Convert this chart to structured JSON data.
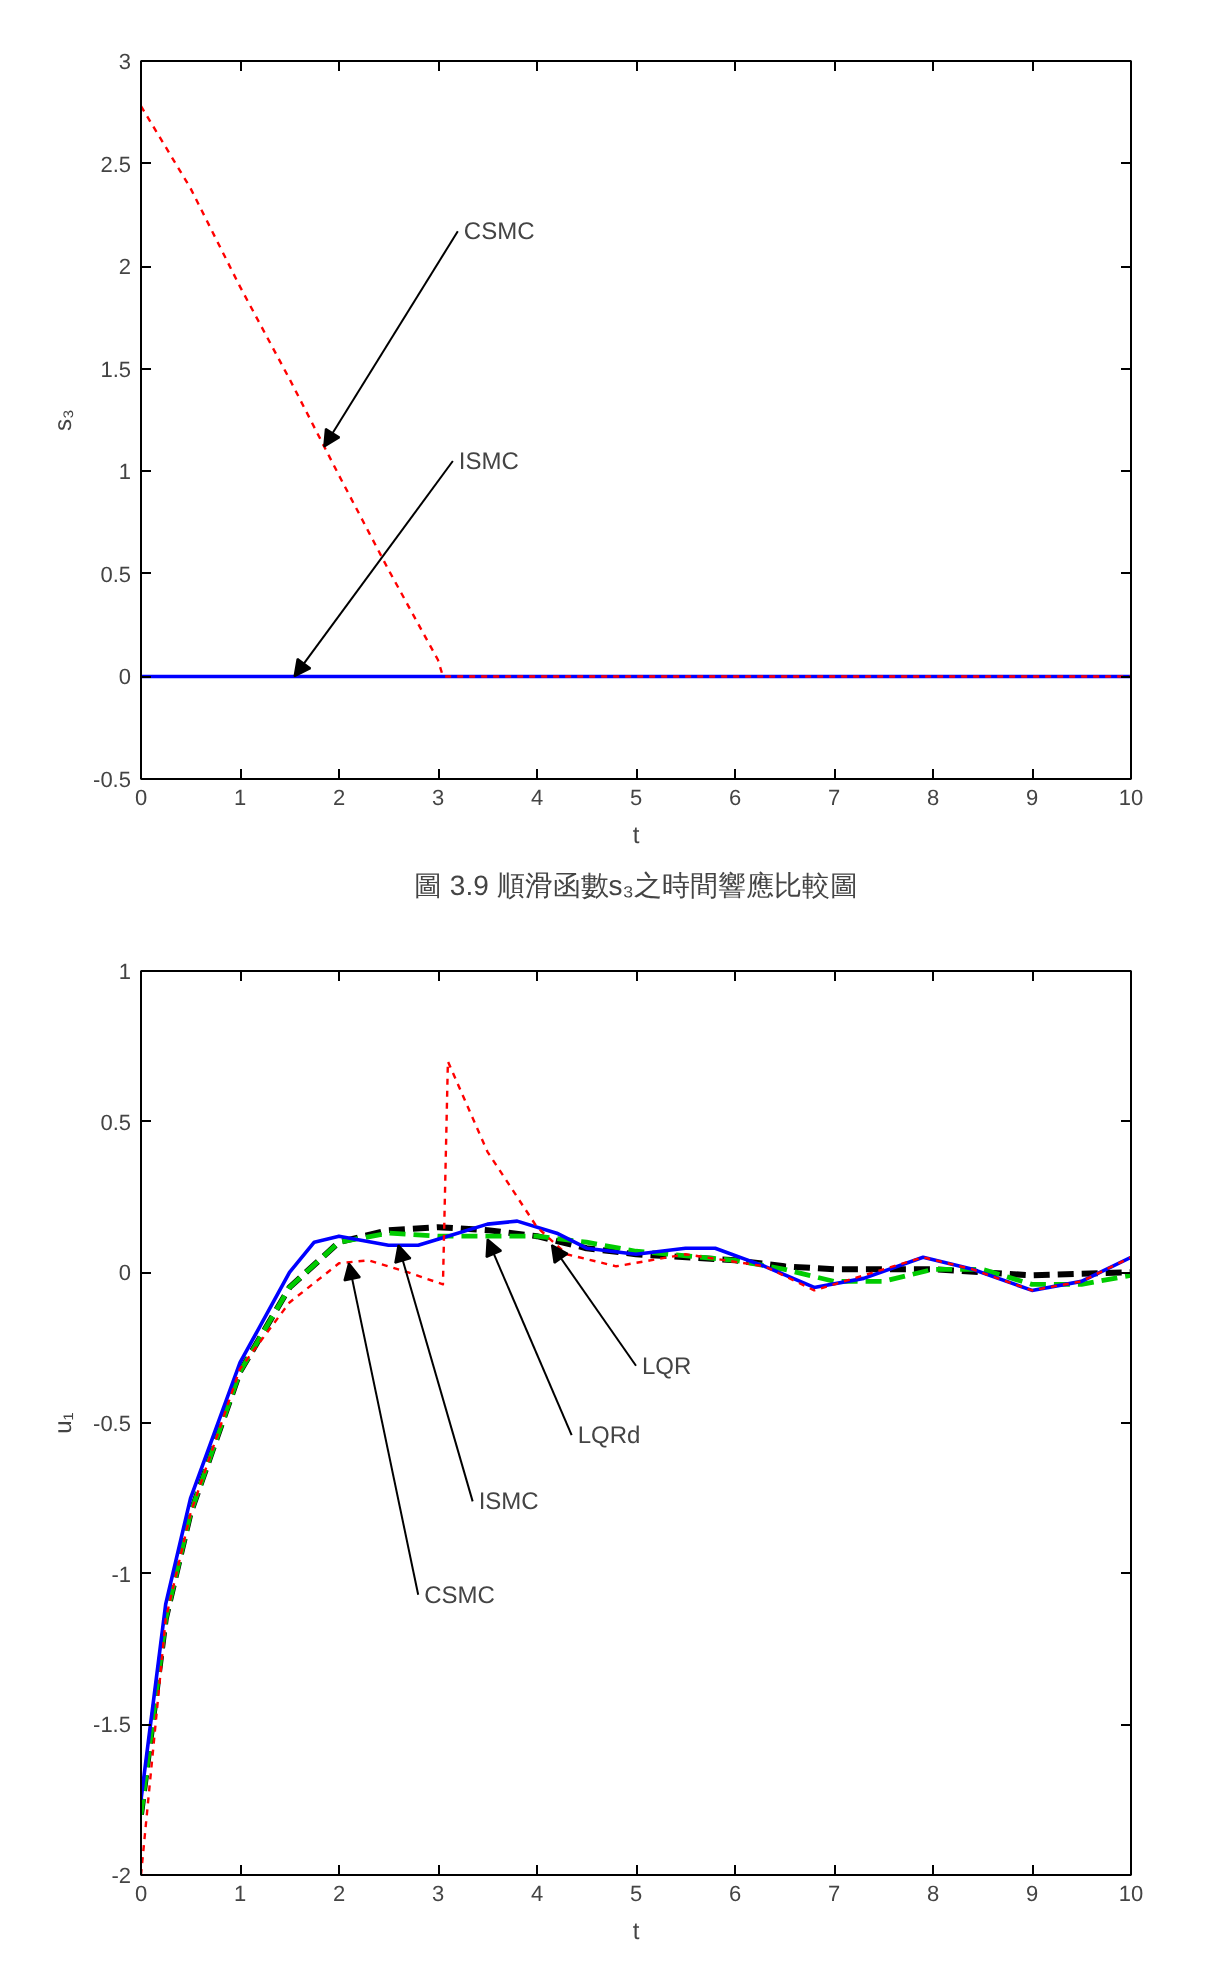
{
  "chart_data": [
    {
      "type": "line",
      "xlabel": "t",
      "ylabel": "s₃",
      "xlim": [
        0,
        10
      ],
      "ylim": [
        -0.5,
        3
      ],
      "xticks": [
        0,
        1,
        2,
        3,
        4,
        5,
        6,
        7,
        8,
        9,
        10
      ],
      "yticks": [
        -0.5,
        0,
        0.5,
        1,
        1.5,
        2,
        2.5,
        3
      ],
      "grid": false,
      "series": [
        {
          "color": "#ff0000",
          "line_style": "dotted",
          "x": [
            0,
            0.5,
            1,
            1.5,
            2,
            2.5,
            3,
            3.05,
            4,
            6,
            8,
            10
          ],
          "values": [
            2.78,
            2.38,
            1.9,
            1.45,
            0.98,
            0.52,
            0.08,
            0,
            0,
            0,
            0,
            0
          ]
        },
        {
          "color": "#0000ff",
          "line_style": "solid",
          "x": [
            0,
            10
          ],
          "values": [
            0,
            0
          ]
        }
      ],
      "annotations": [
        {
          "text": "CSMC",
          "x": 1.85,
          "y": 1.12
        },
        {
          "text": "ISMC",
          "x": 1.55,
          "y": 0
        },
        "圖 3.9 順滑函數s₃之時間響應比較圖"
      ]
    },
    {
      "type": "line",
      "xlabel": "t",
      "ylabel": "u₁",
      "xlim": [
        0,
        10
      ],
      "ylim": [
        -2,
        1
      ],
      "xticks": [
        0,
        1,
        2,
        3,
        4,
        5,
        6,
        7,
        8,
        9,
        10
      ],
      "yticks": [
        -2,
        -1.5,
        -1,
        -0.5,
        0,
        0.5,
        1
      ],
      "grid": false,
      "series": [
        {
          "color": "#ff0000",
          "line_style": "dotted",
          "x": [
            0,
            0.25,
            0.5,
            1,
            1.5,
            2,
            2.3,
            2.7,
            3.05,
            3.1,
            3.5,
            4,
            4.3,
            4.8,
            5.5,
            6.3,
            6.8,
            7.3,
            7.9,
            8.4,
            9,
            9.5,
            10
          ],
          "values": [
            -2,
            -1.15,
            -0.8,
            -0.32,
            -0.1,
            0.03,
            0.04,
            0,
            -0.04,
            0.7,
            0.4,
            0.15,
            0.06,
            0.02,
            0.06,
            0.02,
            -0.06,
            -0.01,
            0.05,
            0.01,
            -0.06,
            -0.03,
            0.05
          ]
        },
        {
          "color": "#0000ff",
          "line_style": "solid",
          "x": [
            0,
            0.25,
            0.5,
            1,
            1.5,
            1.75,
            2,
            2.5,
            2.8,
            3,
            3.5,
            3.8,
            4.2,
            4.5,
            5,
            5.5,
            5.8,
            6.3,
            6.8,
            7.3,
            7.9,
            8.4,
            9,
            9.5,
            10
          ],
          "values": [
            -1.75,
            -1.1,
            -0.75,
            -0.3,
            0,
            0.1,
            0.12,
            0.09,
            0.09,
            0.11,
            0.16,
            0.17,
            0.13,
            0.08,
            0.06,
            0.08,
            0.08,
            0.02,
            -0.05,
            -0.02,
            0.05,
            0.01,
            -0.06,
            -0.03,
            0.05
          ]
        },
        {
          "color": "#00cc00",
          "line_style": "dashed",
          "x": [
            0,
            0.25,
            0.5,
            1,
            1.5,
            2,
            2.5,
            3,
            3.5,
            4,
            4.5,
            5,
            6,
            6.5,
            7,
            7.5,
            8,
            8.5,
            9,
            9.5,
            10
          ],
          "values": [
            -1.8,
            -1.15,
            -0.8,
            -0.33,
            -0.05,
            0.1,
            0.13,
            0.12,
            0.12,
            0.12,
            0.1,
            0.07,
            0.04,
            0.01,
            -0.03,
            -0.03,
            0.01,
            0.01,
            -0.04,
            -0.04,
            -0.01
          ]
        },
        {
          "color": "#000000",
          "line_style": "dashed",
          "x": [
            0,
            0.25,
            0.5,
            1,
            1.5,
            2,
            2.5,
            3,
            3.5,
            4,
            4.5,
            5,
            6,
            6.5,
            7,
            8,
            9,
            10
          ],
          "values": [
            -1.8,
            -1.15,
            -0.8,
            -0.33,
            -0.05,
            0.1,
            0.14,
            0.15,
            0.14,
            0.12,
            0.08,
            0.06,
            0.04,
            0.02,
            0.01,
            0.01,
            -0.01,
            0
          ]
        }
      ],
      "annotations": [
        {
          "text": "CSMC",
          "x": 2.1,
          "y": 0.03
        },
        {
          "text": "ISMC",
          "x": 2.6,
          "y": 0.09
        },
        {
          "text": "LQRd",
          "x": 3.5,
          "y": 0.11
        },
        {
          "text": "LQR",
          "x": 4.15,
          "y": 0.09
        }
      ]
    }
  ]
}
